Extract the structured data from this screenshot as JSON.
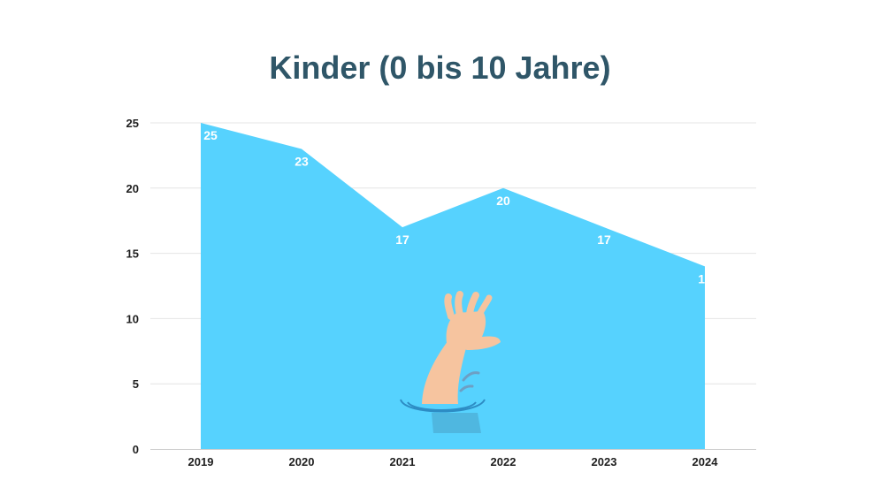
{
  "chart_data": {
    "type": "area",
    "title": "Kinder (0 bis 10 Jahre)",
    "xlabel": "",
    "ylabel": "",
    "categories": [
      "2019",
      "2020",
      "2021",
      "2022",
      "2023",
      "2024"
    ],
    "values": [
      25,
      23,
      17,
      20,
      17,
      14
    ],
    "ylim": [
      0,
      25
    ],
    "yticks": [
      0,
      5,
      10,
      15,
      20,
      25
    ],
    "grid": true,
    "legend": "none",
    "area_color": "#56d2fe",
    "illustration": "drowning-hand"
  }
}
